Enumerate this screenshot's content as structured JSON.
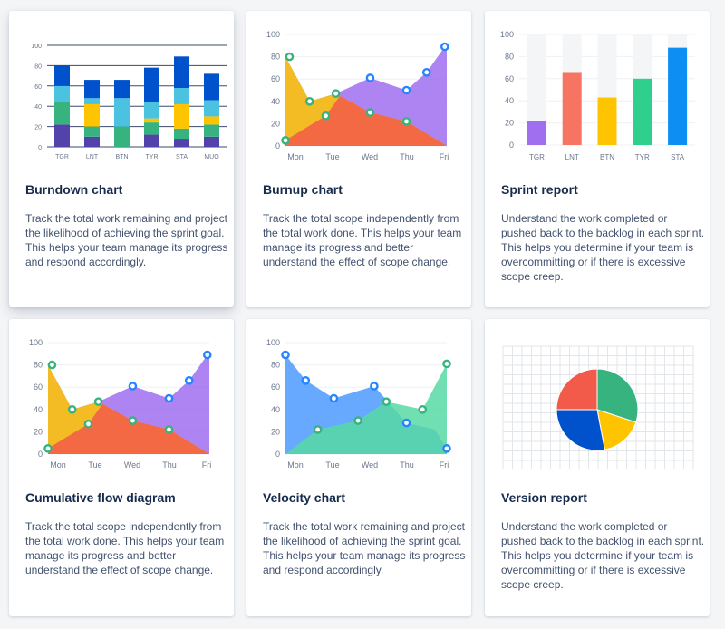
{
  "cards": [
    {
      "title": "Burndown chart",
      "description": "Track the total work remaining and project the likelihood of achieving the sprint goal. This helps your team manage its progress and respond accordingly."
    },
    {
      "title": "Burnup chart",
      "description": "Track the total scope independently from the total work done. This helps your team manage its progress and better understand the effect of scope change."
    },
    {
      "title": "Sprint report",
      "description": "Understand the work completed or pushed back to the backlog in each sprint. This helps you determine if your team is overcommitting or if there is excessive scope creep."
    },
    {
      "title": "Cumulative flow diagram",
      "description": "Track the total scope independently from the total work done. This helps your team manage its progress and better understand the effect of scope change."
    },
    {
      "title": "Velocity chart",
      "description": "Track the total work remaining and project the likelihood of achieving the sprint goal. This helps your team manage its progress and respond accordingly."
    },
    {
      "title": "Version report",
      "description": "Understand the work completed or pushed back to the backlog in each sprint. This helps you determine if your team is overcommitting or if there is excessive scope creep."
    }
  ],
  "colors": {
    "purple": "#9f6ff0",
    "blue": "#2684ff",
    "light_blue": "#4bc3e0",
    "green": "#36b37e",
    "yellow": "#ffc400",
    "orange": "#ffab00",
    "red": "#f25a4a",
    "navy": "#0052cc",
    "indigo": "#5243aa",
    "teal": "#57d9a3",
    "title": "#172b4d",
    "text": "#42526e",
    "axis": "#6b778c"
  },
  "chart_data": [
    {
      "type": "bar",
      "stacked": true,
      "categories": [
        "TGR",
        "LNT",
        "BTN",
        "TYR",
        "STA",
        "MUO"
      ],
      "ylim": [
        0,
        100
      ],
      "yticks": [
        0,
        20,
        40,
        60,
        80,
        100
      ],
      "series": [
        {
          "color": "#5243aa",
          "values": [
            22,
            10,
            0,
            12,
            8,
            10
          ]
        },
        {
          "color": "#36b37e",
          "values": [
            22,
            10,
            20,
            12,
            10,
            12
          ]
        },
        {
          "color": "#ffc400",
          "values": [
            0,
            22,
            0,
            4,
            24,
            8
          ]
        },
        {
          "color": "#4bc3e0",
          "values": [
            16,
            6,
            28,
            16,
            16,
            16
          ]
        },
        {
          "color": "#0052cc",
          "values": [
            20,
            18,
            18,
            34,
            31,
            26
          ]
        }
      ]
    },
    {
      "type": "area",
      "x": [
        "Mon",
        "Tue",
        "Wed",
        "Thu",
        "Fri"
      ],
      "ylim": [
        0,
        100
      ],
      "yticks": [
        0,
        20,
        40,
        60,
        80,
        100
      ],
      "series": [
        {
          "color": "#9f6ff0",
          "points": [
            [
              0,
              80
            ],
            [
              0.6,
              40
            ],
            [
              1.25,
              47
            ],
            [
              2.1,
              61
            ],
            [
              3.0,
              50
            ],
            [
              3.5,
              66
            ],
            [
              3.95,
              89
            ],
            [
              4,
              89
            ],
            [
              4,
              0
            ],
            [
              0,
              0
            ]
          ],
          "markers": [
            [
              2.1,
              61
            ],
            [
              3.0,
              50
            ],
            [
              3.5,
              66
            ],
            [
              3.95,
              89
            ]
          ],
          "marker_color": "#2684ff"
        },
        {
          "color": "#ffc400",
          "points": [
            [
              0,
              80
            ],
            [
              0.6,
              40
            ],
            [
              1.25,
              47
            ],
            [
              2.1,
              30
            ],
            [
              3.0,
              22
            ],
            [
              4,
              0
            ],
            [
              0,
              0
            ]
          ],
          "markers": [
            [
              0.1,
              80
            ],
            [
              0.6,
              40
            ],
            [
              1.25,
              47
            ]
          ],
          "marker_color": "#36b37e"
        },
        {
          "color": "#f25a4a",
          "points": [
            [
              0,
              5
            ],
            [
              1.0,
              27
            ],
            [
              1.35,
              45
            ],
            [
              2.1,
              30
            ],
            [
              3.0,
              22
            ],
            [
              4,
              0
            ],
            [
              0,
              0
            ]
          ],
          "markers": [
            [
              0,
              5
            ],
            [
              1.0,
              27
            ],
            [
              2.1,
              30
            ],
            [
              3.0,
              22
            ]
          ],
          "marker_color": "#36b37e"
        }
      ]
    },
    {
      "type": "bar",
      "categories": [
        "TGR",
        "LNT",
        "BTN",
        "TYR",
        "STA"
      ],
      "ylim": [
        0,
        100
      ],
      "yticks": [
        0,
        20,
        40,
        60,
        80,
        100
      ],
      "values": [
        22,
        66,
        43,
        60,
        88
      ],
      "colors": [
        "#9f6ff0",
        "#f87462",
        "#ffc400",
        "#2fd08d",
        "#0c8ef2"
      ]
    },
    {
      "type": "area",
      "x": [
        "Mon",
        "Tue",
        "Wed",
        "Thu",
        "Fri"
      ],
      "ylim": [
        0,
        100
      ],
      "yticks": [
        0,
        20,
        40,
        60,
        80,
        100
      ],
      "series": [
        {
          "color": "#9f6ff0",
          "points": [
            [
              0,
              80
            ],
            [
              0.6,
              40
            ],
            [
              1.25,
              47
            ],
            [
              2.1,
              61
            ],
            [
              3.0,
              50
            ],
            [
              3.5,
              66
            ],
            [
              3.95,
              89
            ],
            [
              4,
              89
            ],
            [
              4,
              0
            ],
            [
              0,
              0
            ]
          ],
          "markers": [
            [
              2.1,
              61
            ],
            [
              3.0,
              50
            ],
            [
              3.5,
              66
            ],
            [
              3.95,
              89
            ]
          ],
          "marker_color": "#2684ff"
        },
        {
          "color": "#ffc400",
          "points": [
            [
              0,
              80
            ],
            [
              0.6,
              40
            ],
            [
              1.25,
              47
            ],
            [
              2.1,
              30
            ],
            [
              3.0,
              22
            ],
            [
              4,
              0
            ],
            [
              0,
              0
            ]
          ],
          "markers": [
            [
              0.1,
              80
            ],
            [
              0.6,
              40
            ],
            [
              1.25,
              47
            ]
          ],
          "marker_color": "#36b37e"
        },
        {
          "color": "#f25a4a",
          "points": [
            [
              0,
              5
            ],
            [
              1.0,
              27
            ],
            [
              1.35,
              45
            ],
            [
              2.1,
              30
            ],
            [
              3.0,
              22
            ],
            [
              4,
              0
            ],
            [
              0,
              0
            ]
          ],
          "markers": [
            [
              0,
              5
            ],
            [
              1.0,
              27
            ],
            [
              2.1,
              30
            ],
            [
              3.0,
              22
            ]
          ],
          "marker_color": "#36b37e"
        }
      ]
    },
    {
      "type": "area",
      "x": [
        "Mon",
        "Tue",
        "Wed",
        "Thu",
        "Fri"
      ],
      "ylim": [
        0,
        100
      ],
      "yticks": [
        0,
        20,
        40,
        60,
        80,
        100
      ],
      "series": [
        {
          "color": "#4c9aff",
          "points": [
            [
              0,
              89
            ],
            [
              0.5,
              66
            ],
            [
              1.2,
              50
            ],
            [
              2.2,
              61
            ],
            [
              3.0,
              28
            ],
            [
              3.7,
              22
            ],
            [
              4,
              5
            ],
            [
              4,
              0
            ],
            [
              0,
              0
            ]
          ],
          "markers": [
            [
              0,
              89
            ],
            [
              0.5,
              66
            ],
            [
              1.2,
              50
            ],
            [
              2.2,
              61
            ],
            [
              3.0,
              28
            ],
            [
              4,
              5
            ]
          ],
          "marker_color": "#2684ff"
        },
        {
          "color": "#57d9a3",
          "points": [
            [
              0,
              0
            ],
            [
              0.8,
              22
            ],
            [
              1.8,
              30
            ],
            [
              2.5,
              47
            ],
            [
              3.4,
              40
            ],
            [
              4,
              81
            ],
            [
              4,
              0
            ],
            [
              0,
              0
            ]
          ],
          "markers": [
            [
              0.8,
              22
            ],
            [
              1.8,
              30
            ],
            [
              2.5,
              47
            ],
            [
              3.4,
              40
            ],
            [
              4,
              81
            ]
          ],
          "marker_color": "#36b37e"
        }
      ]
    },
    {
      "type": "pie",
      "values": [
        30,
        17,
        28,
        25
      ],
      "colors": [
        "#36b37e",
        "#ffc400",
        "#0052cc",
        "#f25a4a"
      ],
      "grid": true
    }
  ]
}
